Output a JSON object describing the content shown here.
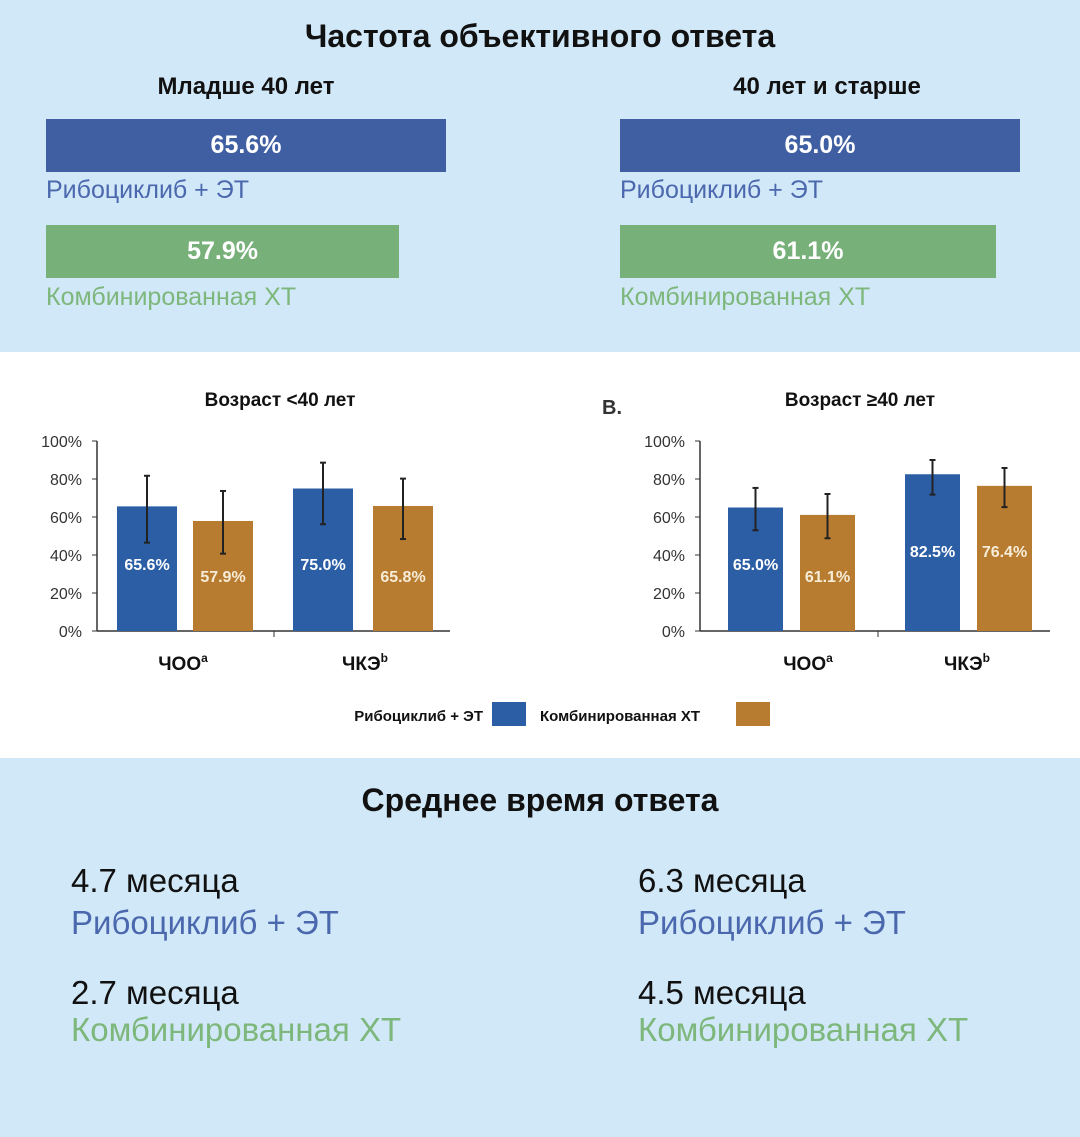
{
  "colors": {
    "ribo": "#3f5fa2",
    "ribo_text": "#4b68ae",
    "chemo": "#78b079",
    "chemo_text": "#7db77b",
    "chart_ribo": "#2c5ea5",
    "chart_chemo": "#b87c30"
  },
  "orr": {
    "title": "Частота объективного ответа",
    "groups": [
      {
        "title": "Младше 40 лет",
        "ribo_value": 65.6,
        "ribo_text": "65.6%",
        "ribo_label": "Рибоциклиб + ЭТ",
        "chemo_value": 57.9,
        "chemo_text": "57.9%",
        "chemo_label": "Комбинированная ХТ"
      },
      {
        "title": "40 лет и старше",
        "ribo_value": 65.0,
        "ribo_text": "65.0%",
        "ribo_label": "Рибоциклиб + ЭТ",
        "chemo_value": 61.1,
        "chemo_text": "61.1%",
        "chemo_label": "Комбинированная ХТ"
      }
    ]
  },
  "chart_data": [
    {
      "type": "bar",
      "title": "Возраст <40 лет",
      "panel_label": "",
      "categories": [
        "ЧОО",
        "ЧКЭ"
      ],
      "category_superscripts": [
        "a",
        "b"
      ],
      "ylim": [
        0,
        100
      ],
      "yticks": [
        "0%",
        "20%",
        "40%",
        "60%",
        "80%",
        "100%"
      ],
      "series": [
        {
          "name": "Рибоциклиб + ЭТ",
          "values": [
            65.6,
            75.0
          ],
          "labels": [
            "65.6%",
            "75.0%"
          ],
          "error_low": [
            46.5,
            56.2
          ],
          "error_high": [
            81.7,
            88.6
          ]
        },
        {
          "name": "Комбинированная ХТ",
          "values": [
            57.9,
            65.8
          ],
          "labels": [
            "57.9%",
            "65.8%"
          ],
          "error_low": [
            40.7,
            48.4
          ],
          "error_high": [
            73.7,
            80.2
          ]
        }
      ]
    },
    {
      "type": "bar",
      "title": "Возраст ≥40 лет",
      "panel_label": "B.",
      "categories": [
        "ЧОО",
        "ЧКЭ"
      ],
      "category_superscripts": [
        "a",
        "b"
      ],
      "ylim": [
        0,
        100
      ],
      "yticks": [
        "0%",
        "20%",
        "40%",
        "60%",
        "80%",
        "100%"
      ],
      "series": [
        {
          "name": "Рибоциклиб + ЭТ",
          "values": [
            65.0,
            82.5
          ],
          "labels": [
            "65.0%",
            "82.5%"
          ],
          "error_low": [
            53.0,
            71.8
          ],
          "error_high": [
            75.3,
            90.0
          ]
        },
        {
          "name": "Комбинированная ХТ",
          "values": [
            61.1,
            76.4
          ],
          "labels": [
            "61.1%",
            "76.4%"
          ],
          "error_low": [
            48.8,
            65.2
          ],
          "error_high": [
            72.1,
            85.8
          ]
        }
      ]
    }
  ],
  "legend": {
    "ribo": "Рибоциклиб + ЭТ",
    "chemo": "Комбинированная ХТ"
  },
  "response_time": {
    "title": "Среднее время ответа",
    "groups": [
      {
        "ribo_value": "4.7 месяца",
        "ribo_label": "Рибоциклиб + ЭТ",
        "chemo_value": "2.7 месяца",
        "chemo_label": "Комбинированная ХТ"
      },
      {
        "ribo_value": "6.3 месяца",
        "ribo_label": "Рибоциклиб + ЭТ",
        "chemo_value": "4.5 месяца",
        "chemo_label": "Комбинированная ХТ"
      }
    ]
  }
}
